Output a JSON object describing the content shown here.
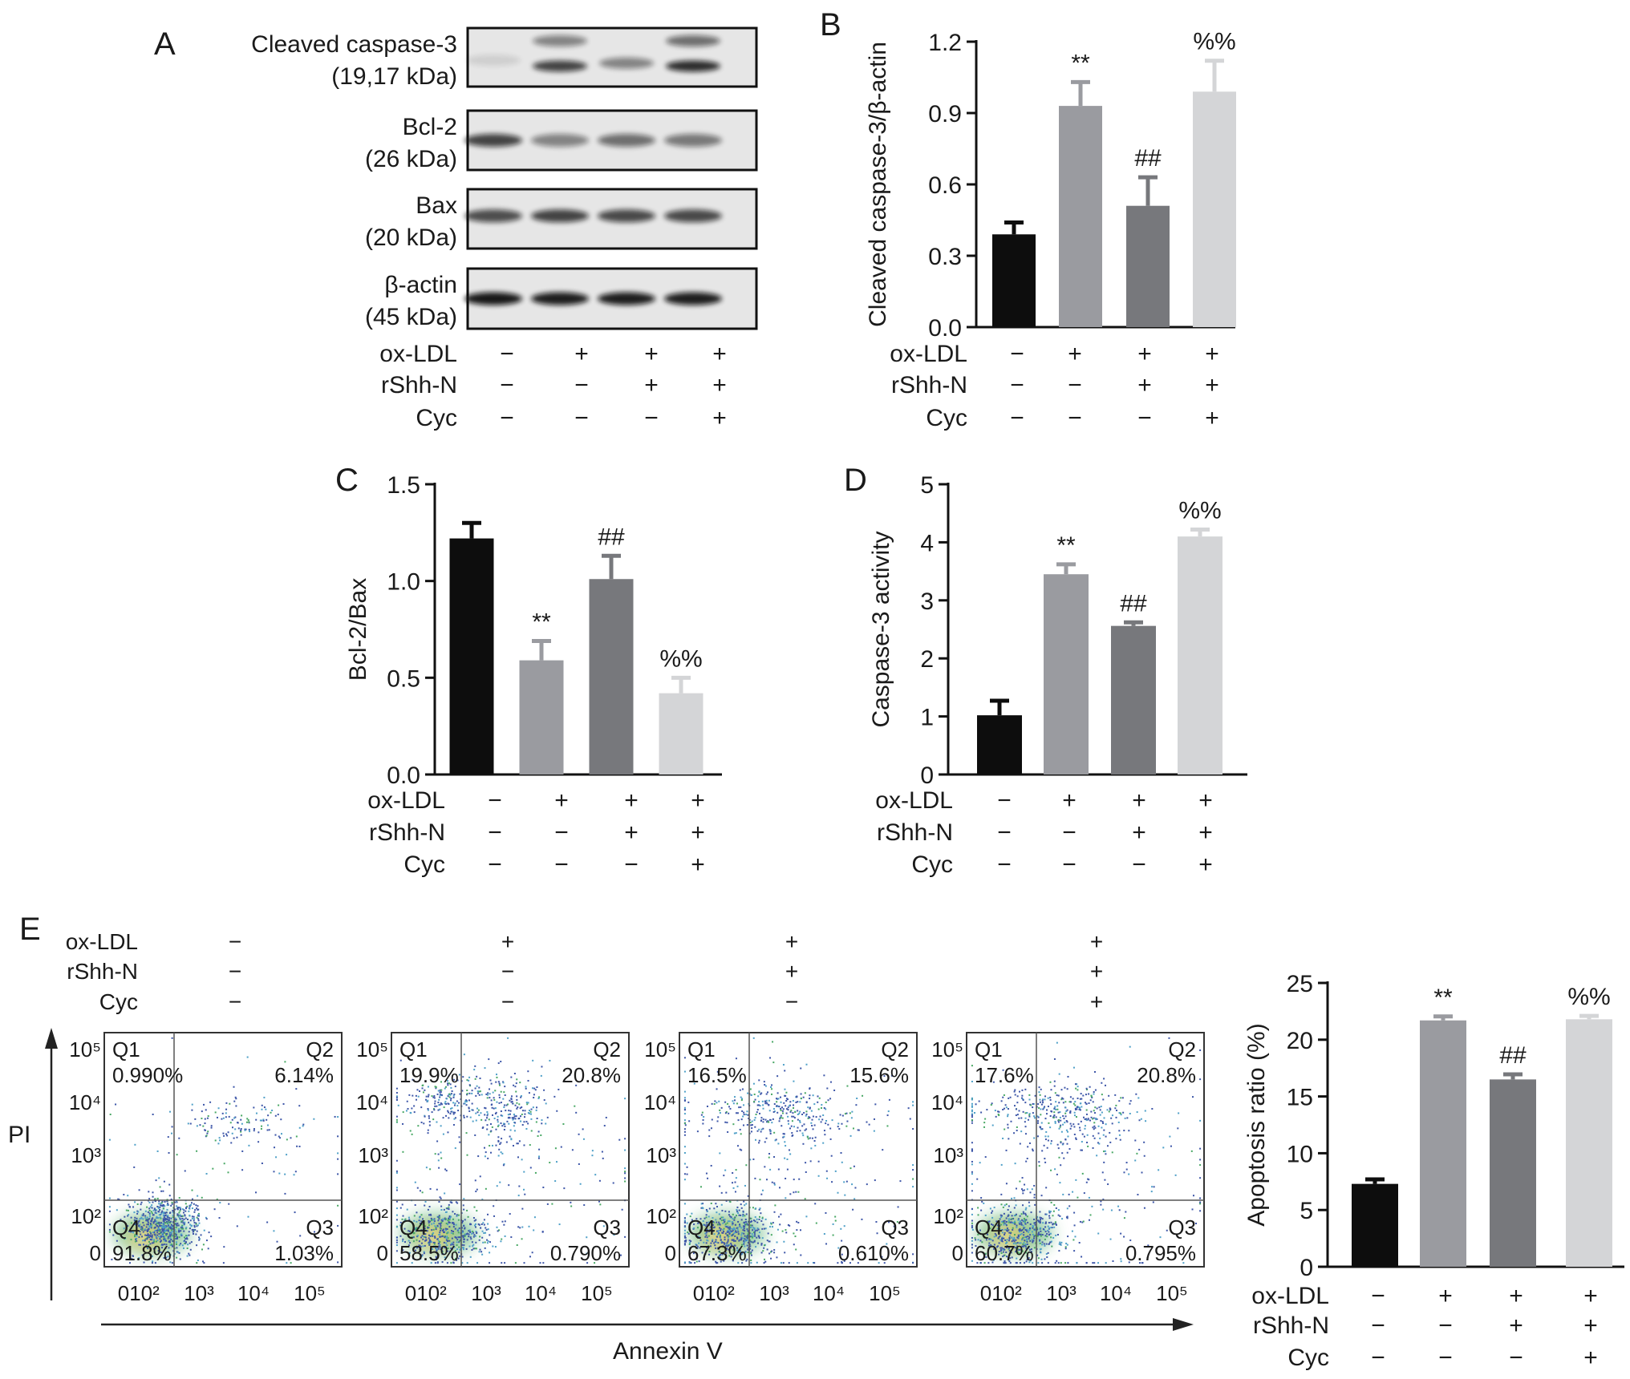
{
  "panel_letters": [
    "A",
    "B",
    "C",
    "D",
    "E"
  ],
  "blot": {
    "bands": [
      {
        "name": "Cleaved caspase-3",
        "size": "(19,17 kDa)"
      },
      {
        "name": "Bcl-2",
        "size": "(26 kDa)"
      },
      {
        "name": "Bax",
        "size": "(20 kDa)"
      },
      {
        "name": "β-actin",
        "size": "(45 kDa)"
      }
    ]
  },
  "treatments": {
    "rows": [
      "ox-LDL",
      "rShh-N",
      "Cyc"
    ],
    "signs": [
      [
        "−",
        "+",
        "+",
        "+"
      ],
      [
        "−",
        "−",
        "+",
        "+"
      ],
      [
        "−",
        "−",
        "−",
        "+"
      ]
    ]
  },
  "colors": {
    "ctrl": "#0d0d0d",
    "oxldl": "#9a9ba0",
    "rshh": "#77787c",
    "cyc": "#d4d5d7"
  },
  "chart_data": [
    {
      "panel": "B",
      "type": "bar",
      "title": "",
      "xlabel": "",
      "ylabel": "Cleaved caspase-3/β-actin",
      "ylim": [
        0,
        1.2
      ],
      "yticks": [
        0,
        0.3,
        0.6,
        0.9,
        1.2
      ],
      "ytick_labels": [
        "0.0",
        "0.3",
        "0.6",
        "0.9",
        "1.2"
      ],
      "values": [
        0.39,
        0.93,
        0.51,
        0.99
      ],
      "errors": [
        0.05,
        0.1,
        0.12,
        0.13
      ],
      "annotations": [
        "",
        "**",
        "##",
        "%%"
      ]
    },
    {
      "panel": "C",
      "type": "bar",
      "title": "",
      "xlabel": "",
      "ylabel": "Bcl-2/Bax",
      "ylim": [
        0,
        1.5
      ],
      "yticks": [
        0,
        0.5,
        1.0,
        1.5
      ],
      "ytick_labels": [
        "0.0",
        "0.5",
        "1.0",
        "1.5"
      ],
      "values": [
        1.22,
        0.59,
        1.01,
        0.42
      ],
      "errors": [
        0.08,
        0.1,
        0.12,
        0.08
      ],
      "annotations": [
        "",
        "**",
        "##",
        "%%"
      ]
    },
    {
      "panel": "D",
      "type": "bar",
      "title": "",
      "xlabel": "",
      "ylabel": "Caspase-3 activity",
      "ylim": [
        0,
        5
      ],
      "yticks": [
        0,
        1,
        2,
        3,
        4,
        5
      ],
      "ytick_labels": [
        "0",
        "1",
        "2",
        "3",
        "4",
        "5"
      ],
      "values": [
        1.02,
        3.45,
        2.56,
        4.1
      ],
      "errors": [
        0.25,
        0.17,
        0.06,
        0.12
      ],
      "annotations": [
        "",
        "**",
        "##",
        "%%"
      ]
    },
    {
      "panel": "E",
      "type": "bar",
      "title": "",
      "xlabel": "",
      "ylabel": "Apoptosis ratio (%)",
      "ylim": [
        0,
        25
      ],
      "yticks": [
        0,
        5,
        10,
        15,
        20,
        25
      ],
      "ytick_labels": [
        "0",
        "5",
        "10",
        "15",
        "20",
        "25"
      ],
      "values": [
        7.3,
        21.7,
        16.5,
        21.8
      ],
      "errors": [
        0.4,
        0.35,
        0.45,
        0.3
      ],
      "annotations": [
        "",
        "**",
        "##",
        "%%"
      ]
    }
  ],
  "flow": {
    "y_axis_label": "PI",
    "x_axis_label": "Annexin V",
    "x_tick_labels": [
      "0",
      "10²",
      "10³",
      "10⁴",
      "10⁵"
    ],
    "y_tick_labels": [
      "10⁵",
      "10⁴",
      "10³",
      "10²",
      "0"
    ],
    "plots": [
      {
        "Q1": "0.990%",
        "Q2": "6.14%",
        "Q3": "1.03%",
        "Q4": "91.8%"
      },
      {
        "Q1": "19.9%",
        "Q2": "20.8%",
        "Q3": "0.790%",
        "Q4": "58.5%"
      },
      {
        "Q1": "16.5%",
        "Q2": "15.6%",
        "Q3": "0.610%",
        "Q4": "67.3%"
      },
      {
        "Q1": "17.6%",
        "Q2": "20.8%",
        "Q3": "0.795%",
        "Q4": "60.7%"
      }
    ],
    "quadrant_names": [
      "Q1",
      "Q2",
      "Q3",
      "Q4"
    ]
  }
}
